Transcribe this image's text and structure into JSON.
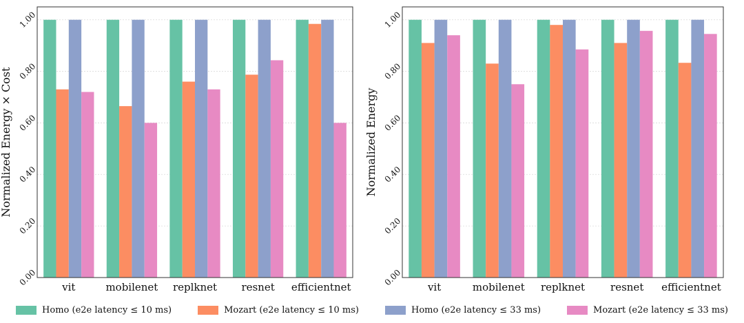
{
  "colors": {
    "homo10": "#66c2a5",
    "mozart10": "#fc8d62",
    "homo33": "#8da0cb",
    "mozart33": "#e78ac3"
  },
  "legend": [
    {
      "key": "homo10",
      "label": "Homo (e2e latency ≤ 10 ms)"
    },
    {
      "key": "mozart10",
      "label": "Mozart (e2e latency ≤ 10 ms)"
    },
    {
      "key": "homo33",
      "label": "Homo (e2e latency ≤ 33 ms)"
    },
    {
      "key": "mozart33",
      "label": "Mozart (e2e latency ≤ 33 ms)"
    }
  ],
  "chart_data": [
    {
      "type": "bar",
      "title": "",
      "xlabel": "",
      "ylabel": "Normalized Energy × Cost",
      "ylim": [
        0,
        1.05
      ],
      "yticks": [
        "0.00",
        "0.20",
        "0.40",
        "0.60",
        "0.80",
        "1.00"
      ],
      "categories": [
        "vit",
        "mobilenet",
        "replknet",
        "resnet",
        "efficientnet"
      ],
      "series": [
        {
          "name": "Homo (e2e latency ≤ 10 ms)",
          "key": "homo10",
          "values": [
            1.0,
            1.0,
            1.0,
            1.0,
            1.0
          ]
        },
        {
          "name": "Mozart (e2e latency ≤ 10 ms)",
          "key": "mozart10",
          "values": [
            0.73,
            0.665,
            0.76,
            0.787,
            0.984
          ]
        },
        {
          "name": "Homo (e2e latency ≤ 33 ms)",
          "key": "homo33",
          "values": [
            1.0,
            1.0,
            1.0,
            1.0,
            1.0
          ]
        },
        {
          "name": "Mozart (e2e latency ≤ 33 ms)",
          "key": "mozart33",
          "values": [
            0.72,
            0.6,
            0.73,
            0.843,
            0.6
          ]
        }
      ]
    },
    {
      "type": "bar",
      "title": "",
      "xlabel": "",
      "ylabel": "Normalized Energy",
      "ylim": [
        0,
        1.05
      ],
      "yticks": [
        "0.00",
        "0.20",
        "0.40",
        "0.60",
        "0.80",
        "1.00"
      ],
      "categories": [
        "vit",
        "mobilenet",
        "replknet",
        "resnet",
        "efficientnet"
      ],
      "series": [
        {
          "name": "Homo (e2e latency ≤ 10 ms)",
          "key": "homo10",
          "values": [
            1.0,
            1.0,
            1.0,
            1.0,
            1.0
          ]
        },
        {
          "name": "Mozart (e2e latency ≤ 10 ms)",
          "key": "mozart10",
          "values": [
            0.91,
            0.83,
            0.98,
            0.91,
            0.833
          ]
        },
        {
          "name": "Homo (e2e latency ≤ 33 ms)",
          "key": "homo33",
          "values": [
            1.0,
            1.0,
            1.0,
            1.0,
            1.0
          ]
        },
        {
          "name": "Mozart (e2e latency ≤ 33 ms)",
          "key": "mozart33",
          "values": [
            0.94,
            0.75,
            0.885,
            0.957,
            0.945
          ]
        }
      ]
    }
  ]
}
